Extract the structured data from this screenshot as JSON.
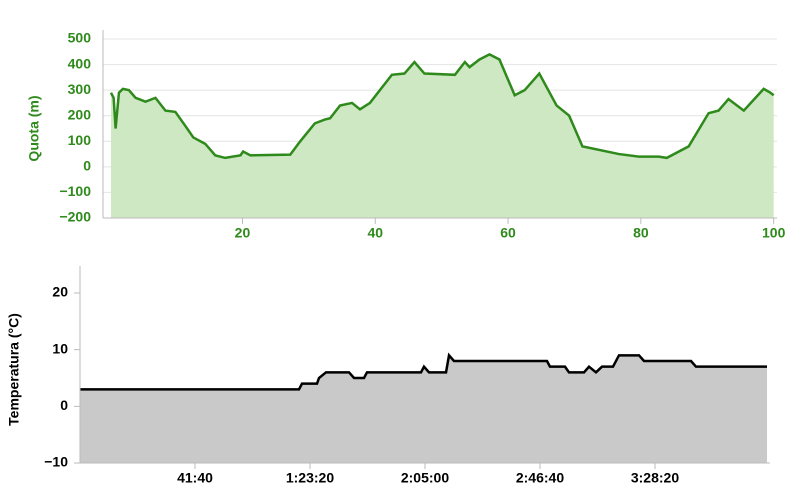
{
  "chart_data": [
    {
      "type": "area",
      "y_label": "Quota (m)",
      "label_color": "#2f8a1c",
      "color": "#2f8a1c",
      "fill_color": "#cfe8c4",
      "grid": true,
      "x": [
        0.2,
        0.6,
        0.9,
        1.4,
        2,
        2.9,
        3.9,
        5.4,
        6.9,
        8.4,
        9.9,
        11.4,
        12.6,
        14.4,
        15.9,
        17.4,
        19.7,
        20.1,
        21.2,
        27.2,
        28.7,
        30.9,
        32.4,
        33.2,
        34.7,
        36.5,
        37.7,
        39.2,
        42.5,
        44.4,
        45.9,
        47.4,
        52,
        53.5,
        54.2,
        55.7,
        57.2,
        58.7,
        61,
        62.5,
        64.7,
        67.3,
        69.2,
        71.2,
        76.7,
        79.7,
        82.7,
        83.9,
        87.2,
        90.2,
        91.7,
        93.2,
        95.5,
        98.5,
        99.5,
        100
      ],
      "values": [
        290,
        270,
        150,
        290,
        305,
        300,
        270,
        255,
        270,
        220,
        215,
        160,
        115,
        90,
        45,
        35,
        45,
        60,
        45,
        48,
        100,
        170,
        185,
        190,
        240,
        250,
        225,
        250,
        360,
        365,
        410,
        365,
        360,
        410,
        390,
        420,
        440,
        420,
        280,
        300,
        365,
        240,
        200,
        80,
        50,
        40,
        40,
        35,
        80,
        210,
        220,
        265,
        220,
        305,
        290,
        280
      ],
      "xlim": [
        -1,
        100.5
      ],
      "xticks": [
        20,
        40,
        60,
        80,
        100
      ],
      "ylim": [
        -200,
        500
      ],
      "yticks": [
        {
          "value": -200,
          "label": "−200"
        },
        {
          "value": -100,
          "label": "−100"
        },
        0,
        100,
        200,
        300,
        400,
        500
      ]
    },
    {
      "type": "area",
      "y_label": "Temperatura (°C)",
      "label_color": "#000000",
      "color": "#000000",
      "fill_color": "#c9c9c9",
      "grid": false,
      "x": [
        0,
        4761,
        4826,
        5152,
        5196,
        5348,
        5848,
        5957,
        6174,
        6239,
        7413,
        7478,
        7587,
        7957,
        8022,
        8130,
        10152,
        10217,
        10543,
        10630,
        10957,
        11065,
        11217,
        11348,
        11587,
        11717,
        12152,
        12261,
        13283,
        13391,
        14935
      ],
      "values": [
        3,
        3,
        4,
        4,
        5,
        6,
        6,
        5,
        5,
        6,
        6,
        7,
        6,
        6,
        9,
        8,
        8,
        7,
        7,
        6,
        6,
        7,
        6,
        7,
        7,
        9,
        9,
        8,
        8,
        7,
        7
      ],
      "xlim": [
        0,
        15000
      ],
      "xticks": [
        {
          "value": 2500,
          "label": "41:40"
        },
        {
          "value": 5000,
          "label": "1:23:20"
        },
        {
          "value": 7500,
          "label": "2:05:00"
        },
        {
          "value": 10000,
          "label": "2:46:40"
        },
        {
          "value": 12500,
          "label": "3:28:20"
        }
      ],
      "ylim": [
        -10,
        23
      ],
      "yticks": [
        {
          "value": -10,
          "label": "−10"
        },
        0,
        10,
        20
      ]
    }
  ]
}
